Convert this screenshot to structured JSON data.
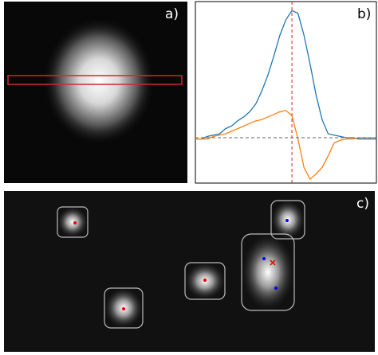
{
  "chart_data": [
    {
      "type": "image",
      "label": "a)"
    },
    {
      "type": "line",
      "label": "b)",
      "x": [
        0,
        1,
        2,
        3,
        4,
        5,
        6,
        7,
        8,
        9,
        10,
        11,
        12,
        13,
        14,
        15,
        16,
        17,
        18,
        19,
        20,
        21,
        22,
        23,
        24,
        25,
        26,
        27,
        28,
        29,
        30
      ],
      "series": [
        {
          "color": "#1f77b4",
          "values": [
            -0.01,
            -0.01,
            0.01,
            0.02,
            0.03,
            0.07,
            0.09,
            0.13,
            0.16,
            0.2,
            0.26,
            0.36,
            0.48,
            0.63,
            0.79,
            0.91,
            0.98,
            0.96,
            0.79,
            0.57,
            0.33,
            0.14,
            0.03,
            0.02,
            0.01,
            0,
            0,
            -0.01,
            -0.01,
            -0.01,
            -0.01
          ]
        },
        {
          "color": "#ff7f0e",
          "values": [
            -0.01,
            -0.01,
            -0.01,
            0.01,
            0.02,
            0.03,
            0.05,
            0.07,
            0.09,
            0.11,
            0.13,
            0.14,
            0.16,
            0.18,
            0.2,
            0.21,
            0.17,
            -0.01,
            -0.23,
            -0.32,
            -0.28,
            -0.23,
            -0.14,
            -0.04,
            -0.02,
            -0.01,
            -0.01,
            0,
            0,
            0,
            0
          ]
        }
      ],
      "xlim": [
        0,
        30
      ],
      "ylim": [
        -0.35,
        1.05
      ],
      "hline": 0,
      "vline": 16
    },
    {
      "type": "image",
      "label": "c)"
    }
  ]
}
